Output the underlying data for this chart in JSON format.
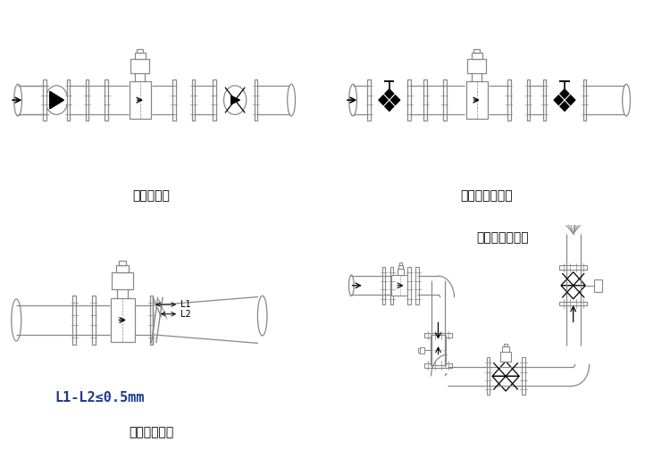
{
  "bg_color": "#ffffff",
  "line_color": "#888888",
  "dark_color": "#000000",
  "label1": "泵后的安装",
  "label2": "控制阀前的安装",
  "label3": "法兰连接偏差",
  "label4": "弯曲管道上安装",
  "formula": "L1-L2≤0.5mm",
  "title_fontsize": 10,
  "formula_fontsize": 11
}
